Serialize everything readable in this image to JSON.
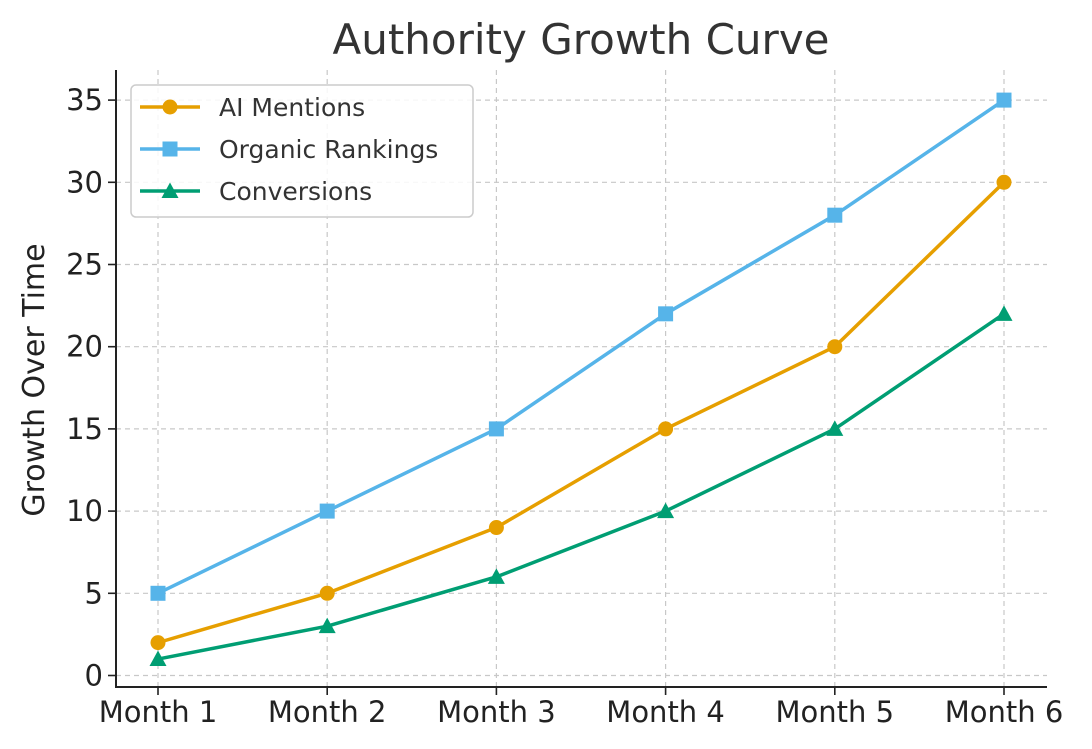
{
  "chart_data": {
    "type": "line",
    "title": "Authority Growth Curve",
    "xlabel": "",
    "ylabel": "Growth Over Time",
    "categories": [
      "Month 1",
      "Month 2",
      "Month 3",
      "Month 4",
      "Month 5",
      "Month 6"
    ],
    "y_ticks": [
      0,
      5,
      10,
      15,
      20,
      25,
      30,
      35
    ],
    "ylim": [
      0,
      36
    ],
    "grid": true,
    "legend_position": "top-left",
    "series": [
      {
        "name": "AI Mentions",
        "values": [
          2,
          5,
          9,
          15,
          20,
          30
        ],
        "color": "#E69F00",
        "marker": "circle"
      },
      {
        "name": "Organic Rankings",
        "values": [
          5,
          10,
          15,
          22,
          28,
          35
        ],
        "color": "#56B4E9",
        "marker": "square"
      },
      {
        "name": "Conversions",
        "values": [
          1,
          3,
          6,
          10,
          15,
          22
        ],
        "color": "#009E73",
        "marker": "triangle"
      }
    ]
  }
}
